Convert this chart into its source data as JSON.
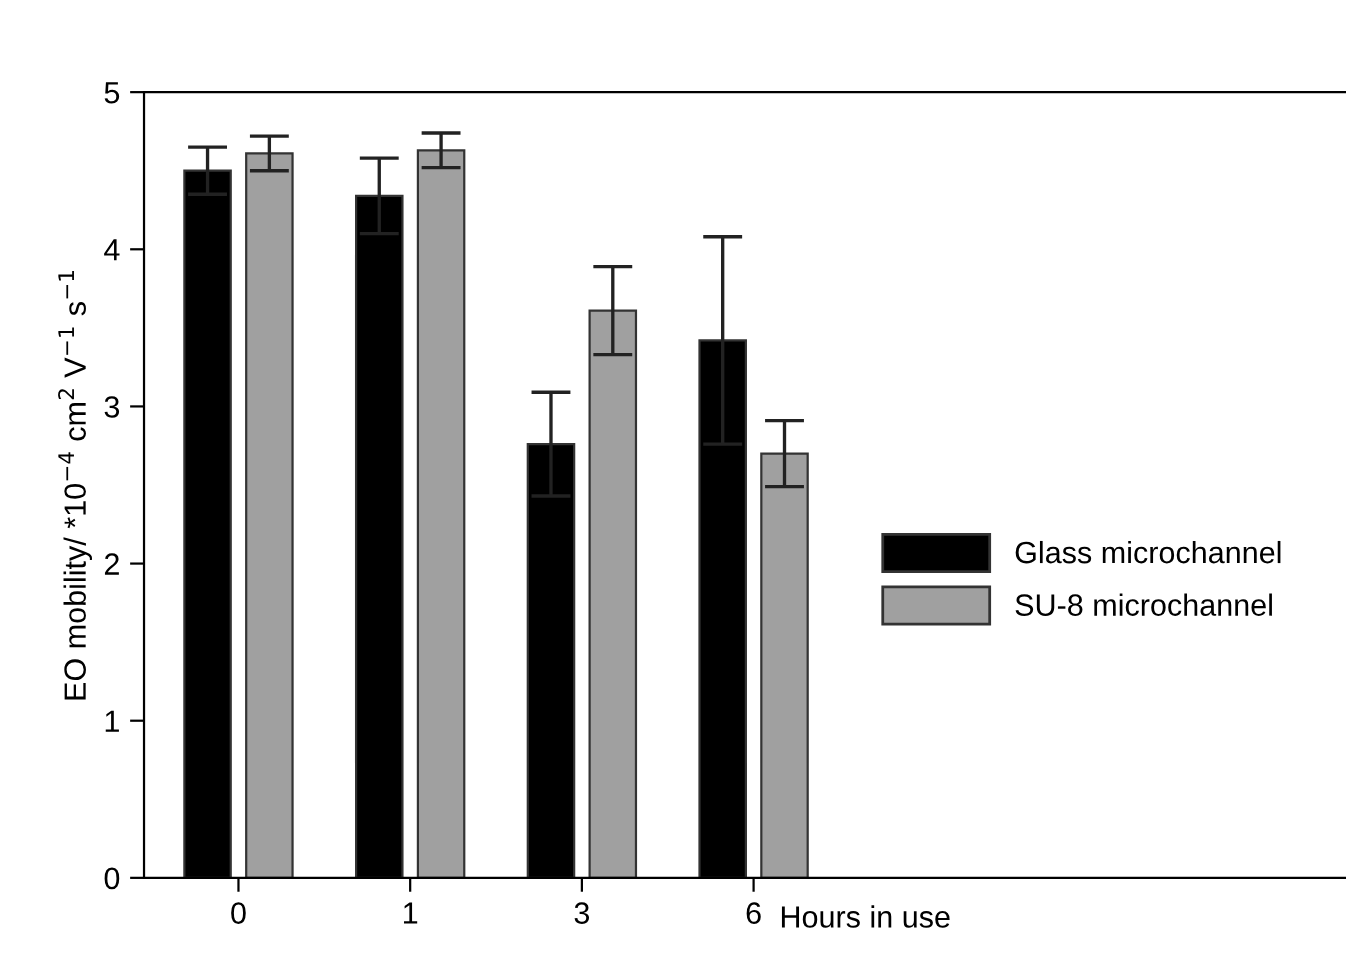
{
  "chart_data": {
    "type": "bar",
    "xlabel": "Hours in use",
    "ylabel": "EO mobility/ *10$^{−4}$ cm$^{2}$ V$^{−1}$ s$^{−1}$",
    "categories": [
      "0",
      "1",
      "3",
      "6"
    ],
    "series": [
      {
        "name": "Glass microchannel",
        "color": "#000000",
        "values": [
          4.5,
          4.34,
          2.76,
          3.42
        ],
        "errors": [
          0.15,
          0.24,
          0.33,
          0.66
        ]
      },
      {
        "name": "SU-8 microchannel",
        "color": "#a0a0a0",
        "values": [
          4.61,
          4.63,
          3.61,
          2.7
        ],
        "errors": [
          0.11,
          0.11,
          0.28,
          0.21
        ]
      }
    ],
    "ylim": [
      0,
      5
    ],
    "yticks": [
      0,
      1,
      2,
      3,
      4,
      5
    ],
    "grid": false,
    "legend": "right"
  }
}
